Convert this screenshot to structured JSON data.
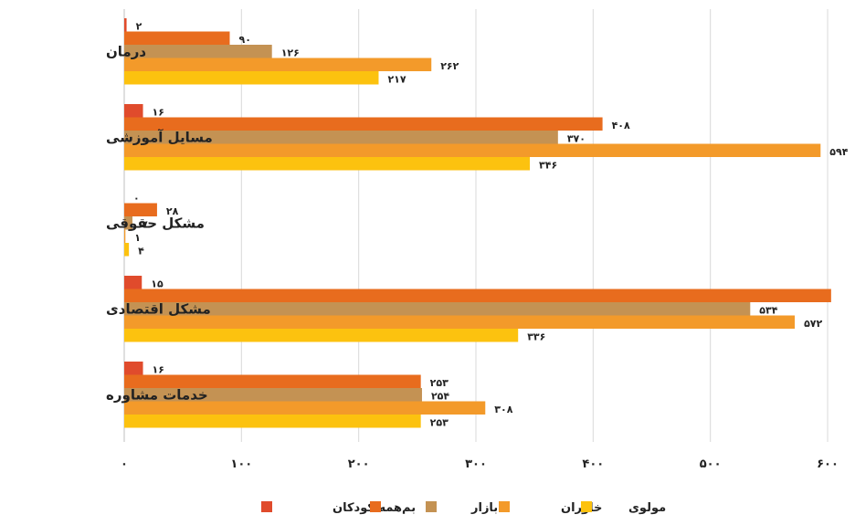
{
  "chart_data": {
    "type": "bar",
    "orientation": "horizontal",
    "categories": [
      "درمان",
      "مسایل آموزشی",
      "مشکل حقوقی",
      "مشکل اقتصادی",
      "خدمات مشاوره"
    ],
    "series": [
      {
        "name": "همه کودکان",
        "color": "#e04b2c",
        "values": [
          2,
          16,
          0,
          15,
          16
        ],
        "labels": [
          "۲",
          "۱۶",
          "۰",
          "۱۵",
          "۱۶"
        ]
      },
      {
        "name": "بم",
        "color": "#e86c1e",
        "values": [
          90,
          408,
          28,
          603,
          253
        ],
        "labels": [
          "۹۰",
          "۴۰۸",
          "۲۸",
          "",
          "۲۵۳"
        ]
      },
      {
        "name": "بازار",
        "color": "#c49253",
        "values": [
          126,
          370,
          7,
          534,
          254
        ],
        "labels": [
          "۱۲۶",
          "۳۷۰",
          "۷",
          "۵۳۴",
          "۲۵۴"
        ]
      },
      {
        "name": "خاوران",
        "color": "#f39a2a",
        "values": [
          262,
          594,
          1,
          572,
          308
        ],
        "labels": [
          "۲۶۲",
          "۵۹۴",
          "۱",
          "۵۷۲",
          "۳۰۸"
        ]
      },
      {
        "name": "مولوی",
        "color": "#fcc20f",
        "values": [
          217,
          346,
          4,
          336,
          253
        ],
        "labels": [
          "۲۱۷",
          "۳۴۶",
          "۴",
          "۳۳۶",
          "۲۵۳"
        ]
      }
    ],
    "xlim": [
      0,
      600
    ],
    "xticks": [
      0,
      100,
      200,
      300,
      400,
      500,
      600
    ],
    "xtick_labels": [
      "۰",
      "۱۰۰",
      "۲۰۰",
      "۳۰۰",
      "۴۰۰",
      "۵۰۰",
      "۶۰۰"
    ],
    "grid": "vertical",
    "legend": "bottom"
  }
}
